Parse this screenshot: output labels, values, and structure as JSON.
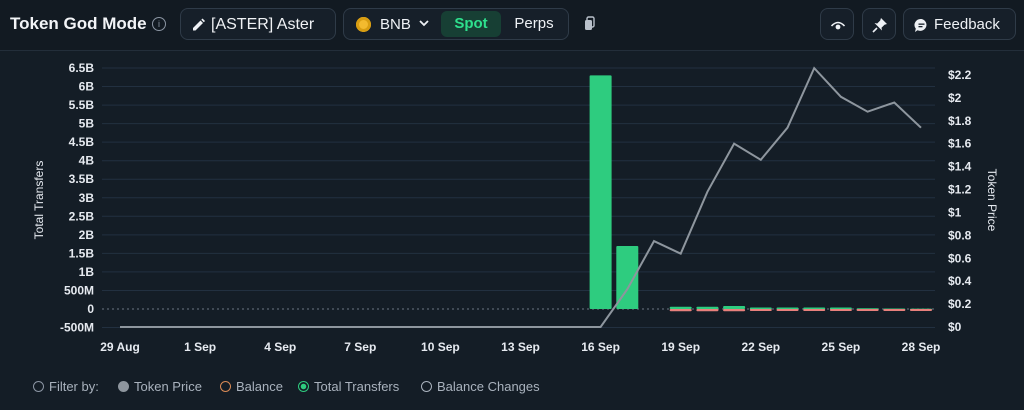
{
  "header": {
    "title": "Token God Mode",
    "info_symbol": "i",
    "token_label": "[ASTER] Aster",
    "chain_label": "BNB",
    "tabs": [
      {
        "label": "Spot",
        "active": true
      },
      {
        "label": "Perps",
        "active": false
      }
    ],
    "feedback_label": "Feedback"
  },
  "colors": {
    "accent": "#2ee08d",
    "positive_bar": "#2ecc7f",
    "negative_bar": "#e8807c",
    "price_line": "#8e969e",
    "background": "#141d26"
  },
  "legend": {
    "prefix": "Filter by:",
    "items": [
      {
        "label": "Token Price",
        "style": "filled-gray"
      },
      {
        "label": "Balance",
        "style": "ring-orange"
      },
      {
        "label": "Total Transfers",
        "style": "ring-green-active"
      },
      {
        "label": "Balance Changes",
        "style": "ring-gray"
      }
    ]
  },
  "chart_data": {
    "type": "bar",
    "x_ticks": [
      "29 Aug",
      "1 Sep",
      "4 Sep",
      "7 Sep",
      "10 Sep",
      "13 Sep",
      "16 Sep",
      "19 Sep",
      "22 Sep",
      "25 Sep",
      "28 Sep"
    ],
    "ylabel_left": "Total Transfers",
    "ylabel_right": "Token Price",
    "left_ticks": [
      {
        "label": "6.5B",
        "value": 6500000000
      },
      {
        "label": "6B",
        "value": 6000000000
      },
      {
        "label": "5.5B",
        "value": 5500000000
      },
      {
        "label": "5B",
        "value": 5000000000
      },
      {
        "label": "4.5B",
        "value": 4500000000
      },
      {
        "label": "4B",
        "value": 4000000000
      },
      {
        "label": "3.5B",
        "value": 3500000000
      },
      {
        "label": "3B",
        "value": 3000000000
      },
      {
        "label": "2.5B",
        "value": 2500000000
      },
      {
        "label": "2B",
        "value": 2000000000
      },
      {
        "label": "1.5B",
        "value": 1500000000
      },
      {
        "label": "1B",
        "value": 1000000000
      },
      {
        "label": "500M",
        "value": 500000000
      },
      {
        "label": "0",
        "value": 0
      },
      {
        "label": "-500M",
        "value": -500000000
      }
    ],
    "right_ticks": [
      {
        "label": "$2.2",
        "value": 2.2
      },
      {
        "label": "$2",
        "value": 2.0
      },
      {
        "label": "$1.8",
        "value": 1.8
      },
      {
        "label": "$1.6",
        "value": 1.6
      },
      {
        "label": "$1.4",
        "value": 1.4
      },
      {
        "label": "$1.2",
        "value": 1.2
      },
      {
        "label": "$1",
        "value": 1.0
      },
      {
        "label": "$0.8",
        "value": 0.8
      },
      {
        "label": "$0.6",
        "value": 0.6
      },
      {
        "label": "$0.4",
        "value": 0.4
      },
      {
        "label": "$0.2",
        "value": 0.2
      },
      {
        "label": "$0",
        "value": 0
      }
    ],
    "left_ylim": [
      -500000000,
      6600000000
    ],
    "right_ylim": [
      0,
      2.25
    ],
    "dates": [
      "29 Aug",
      "30 Aug",
      "31 Aug",
      "1 Sep",
      "2 Sep",
      "3 Sep",
      "4 Sep",
      "5 Sep",
      "6 Sep",
      "7 Sep",
      "8 Sep",
      "9 Sep",
      "10 Sep",
      "11 Sep",
      "12 Sep",
      "13 Sep",
      "14 Sep",
      "15 Sep",
      "16 Sep",
      "17 Sep",
      "18 Sep",
      "19 Sep",
      "20 Sep",
      "21 Sep",
      "22 Sep",
      "23 Sep",
      "24 Sep",
      "25 Sep",
      "26 Sep",
      "27 Sep",
      "28 Sep"
    ],
    "series": [
      {
        "name": "Total Transfers",
        "kind": "bar",
        "axis": "left",
        "color": "#2ecc7f",
        "values": [
          0,
          0,
          0,
          0,
          0,
          0,
          0,
          0,
          0,
          0,
          0,
          0,
          0,
          0,
          0,
          0,
          0,
          0,
          6300000000,
          1700000000,
          0,
          60000000,
          60000000,
          80000000,
          40000000,
          40000000,
          40000000,
          40000000,
          20000000,
          15000000,
          10000000
        ]
      },
      {
        "name": "Balance Changes",
        "kind": "bar",
        "axis": "left",
        "color": "#e8807c",
        "values": [
          0,
          0,
          0,
          0,
          0,
          0,
          0,
          0,
          0,
          0,
          0,
          0,
          0,
          0,
          0,
          0,
          0,
          0,
          0,
          0,
          0,
          -60000000,
          -60000000,
          -60000000,
          -30000000,
          -30000000,
          -30000000,
          -25000000,
          -15000000,
          -10000000,
          -5000000
        ]
      },
      {
        "name": "Token Price",
        "kind": "line",
        "axis": "right",
        "color": "#8e969e",
        "values": [
          0,
          0,
          0,
          0,
          0,
          0,
          0,
          0,
          0,
          0,
          0,
          0,
          0,
          0,
          0,
          0,
          0,
          0,
          0,
          0.33,
          0.75,
          0.64,
          1.18,
          1.6,
          1.46,
          1.74,
          2.26,
          2.01,
          1.88,
          1.96,
          1.74
        ]
      }
    ]
  }
}
